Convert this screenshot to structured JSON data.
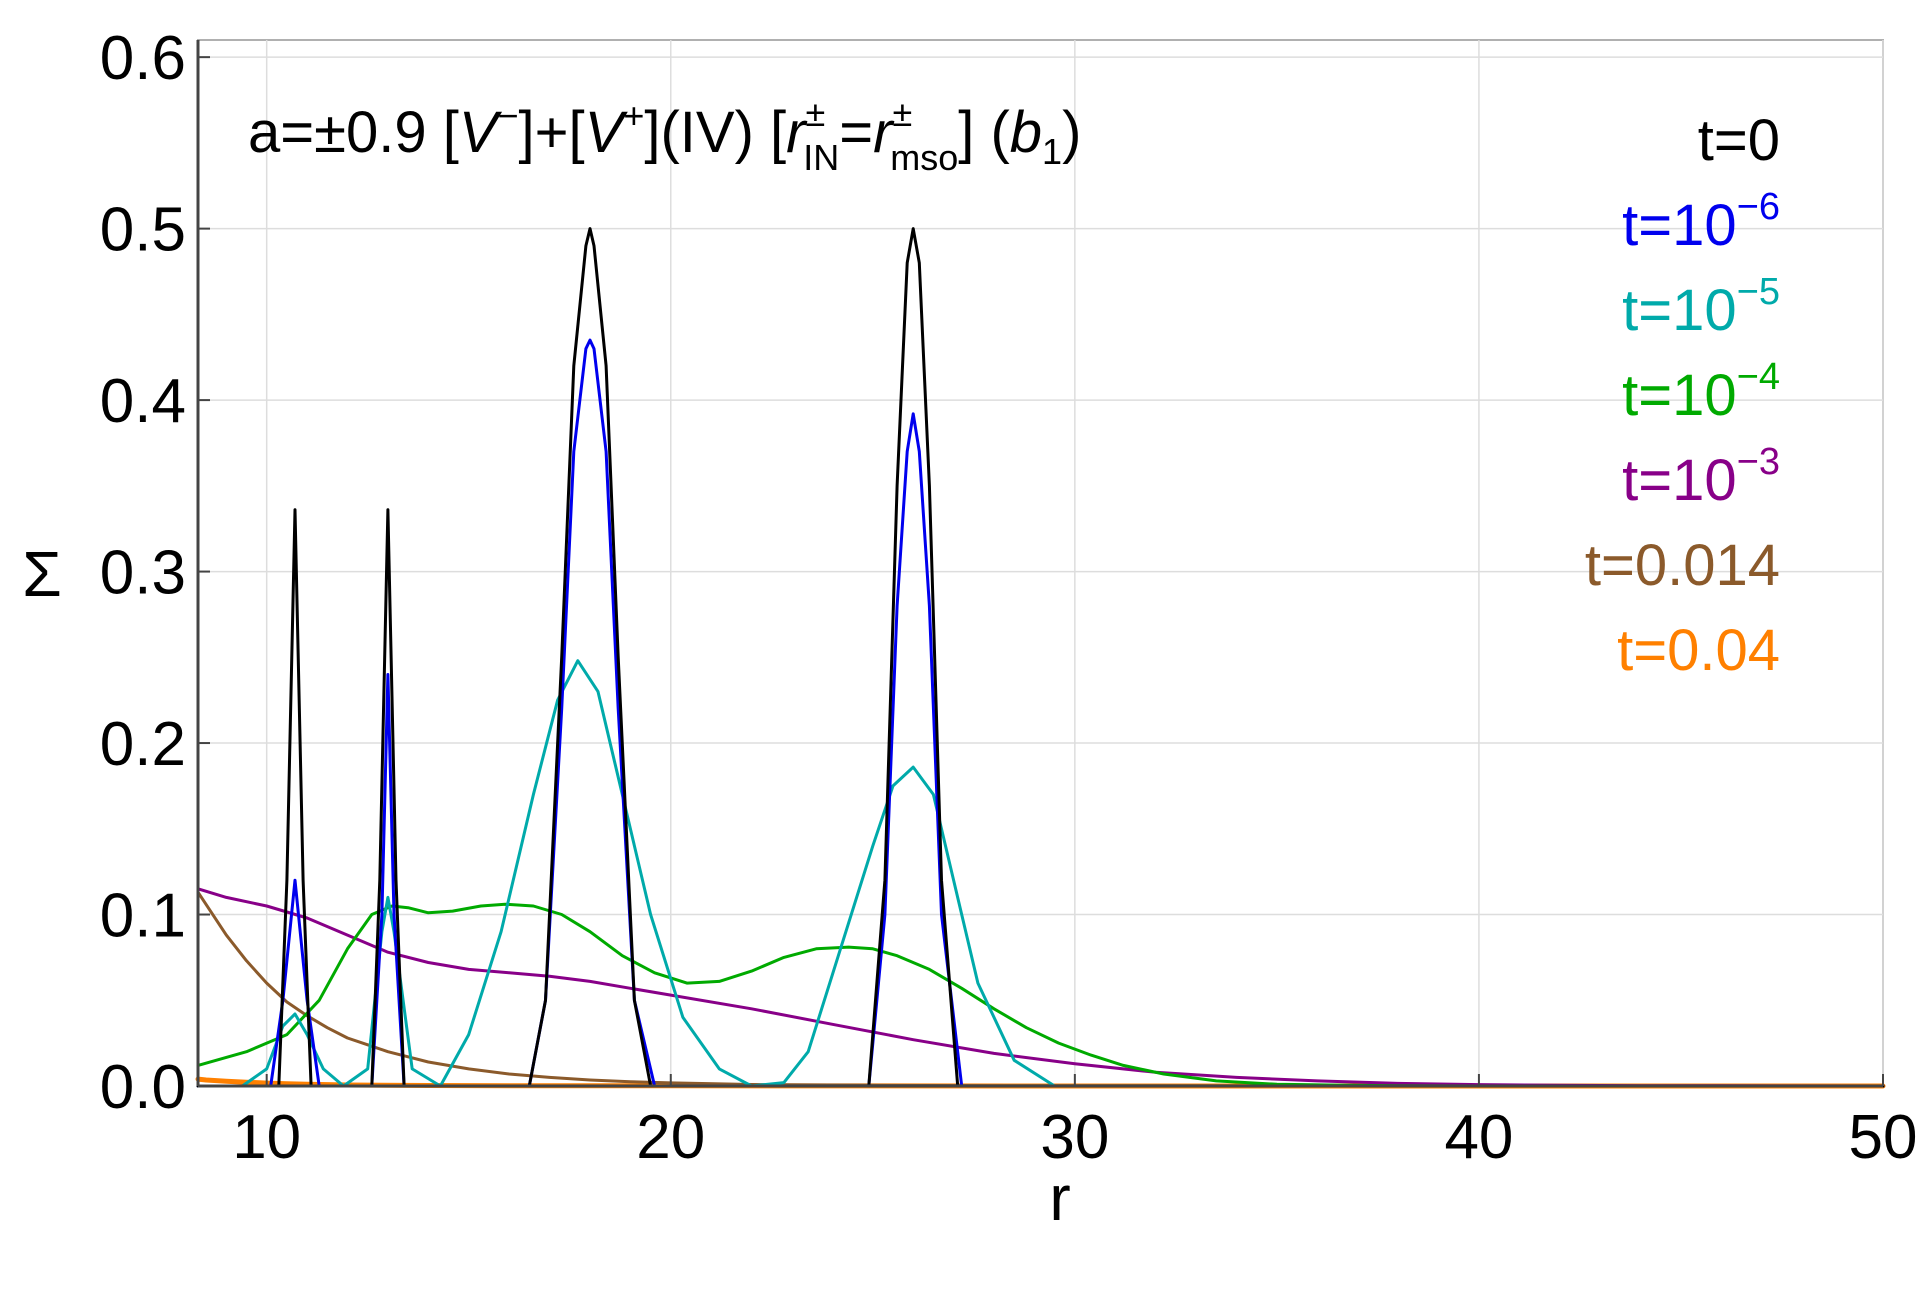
{
  "chart_data": {
    "type": "line",
    "title": {
      "prefix": "a=±0.9 [",
      "v_minus": "V",
      "minus_sup": "−",
      "mid1": "]+[",
      "v_plus": "V",
      "plus_sup": "+",
      "mid2": "](IV) [",
      "r_sym": "r",
      "pm_sup": "±",
      "in_sub": "IN",
      "eq": "=",
      "r_sym2": "r",
      "pm_sup2": "±",
      "mso_sub": "mso",
      "mid3": "] (",
      "b_sym": "b",
      "b_sub": "1",
      "end": ")"
    },
    "xlabel": "r",
    "ylabel": "Σ",
    "xlim": [
      8.3,
      50
    ],
    "ylim": [
      0,
      0.61
    ],
    "xticks": [
      "10",
      "20",
      "30",
      "40",
      "50"
    ],
    "xtick_values": [
      10,
      20,
      30,
      40,
      50
    ],
    "yticks": [
      "0.0",
      "0.1",
      "0.2",
      "0.3",
      "0.4",
      "0.5",
      "0.6"
    ],
    "ytick_values": [
      0,
      0.1,
      0.2,
      0.3,
      0.4,
      0.5,
      0.6
    ],
    "legend_position": "top-right",
    "series": [
      {
        "name": "t=0",
        "label_base": "t=0",
        "label_sup": "",
        "color": "#000000",
        "x": [
          8.3,
          10.3,
          10.5,
          10.7,
          10.9,
          11.1,
          12.6,
          12.8,
          13.0,
          13.2,
          13.4,
          16.5,
          16.9,
          17.3,
          17.6,
          17.9,
          18.0,
          18.1,
          18.4,
          18.7,
          19.1,
          19.5,
          24.9,
          25.3,
          25.6,
          25.85,
          26.0,
          26.15,
          26.4,
          26.7,
          27.1,
          50
        ],
        "y": [
          0,
          0,
          0.12,
          0.336,
          0.12,
          0,
          0,
          0.12,
          0.336,
          0.12,
          0,
          0,
          0.05,
          0.25,
          0.42,
          0.49,
          0.5,
          0.49,
          0.42,
          0.25,
          0.05,
          0,
          0,
          0.12,
          0.35,
          0.48,
          0.5,
          0.48,
          0.35,
          0.12,
          0,
          0
        ]
      },
      {
        "name": "t=10^-6",
        "label_base": "t=10",
        "label_sup": "−6",
        "color": "#0000ee",
        "x": [
          8.3,
          10.1,
          10.4,
          10.7,
          11.0,
          11.3,
          12.6,
          12.85,
          13.0,
          13.15,
          13.4,
          16.5,
          16.9,
          17.3,
          17.6,
          17.9,
          18.0,
          18.1,
          18.4,
          18.7,
          19.1,
          19.6,
          24.9,
          25.3,
          25.6,
          25.85,
          26.0,
          26.15,
          26.4,
          26.7,
          27.2,
          50
        ],
        "y": [
          0,
          0,
          0.05,
          0.12,
          0.05,
          0,
          0,
          0.1,
          0.24,
          0.1,
          0,
          0,
          0.05,
          0.22,
          0.37,
          0.43,
          0.435,
          0.43,
          0.37,
          0.22,
          0.05,
          0,
          0,
          0.1,
          0.28,
          0.37,
          0.392,
          0.37,
          0.28,
          0.1,
          0,
          0
        ]
      },
      {
        "name": "t=10^-5",
        "label_base": "t=10",
        "label_sup": "−5",
        "color": "#00aaaa",
        "x": [
          8.3,
          9.4,
          10.0,
          10.4,
          10.7,
          11.0,
          11.4,
          11.9,
          12.5,
          12.85,
          13.0,
          13.15,
          13.6,
          14.3,
          15.0,
          15.8,
          16.6,
          17.2,
          17.7,
          18.2,
          18.8,
          19.5,
          20.3,
          21.2,
          22.0,
          22.8,
          23.4,
          24.2,
          25.0,
          25.5,
          26.0,
          26.5,
          27.0,
          27.6,
          28.5,
          29.5,
          50
        ],
        "y": [
          0,
          0,
          0.01,
          0.035,
          0.042,
          0.03,
          0.01,
          0,
          0.01,
          0.09,
          0.11,
          0.09,
          0.01,
          0,
          0.03,
          0.09,
          0.17,
          0.225,
          0.248,
          0.23,
          0.17,
          0.1,
          0.04,
          0.01,
          0,
          0.002,
          0.02,
          0.08,
          0.14,
          0.175,
          0.186,
          0.17,
          0.12,
          0.06,
          0.015,
          0,
          0
        ]
      },
      {
        "name": "t=10^-4",
        "label_base": "t=10",
        "label_sup": "−4",
        "color": "#00aa00",
        "x": [
          8.3,
          9.5,
          10.5,
          11.3,
          12.0,
          12.6,
          13.1,
          13.5,
          14.0,
          14.6,
          15.3,
          15.9,
          16.6,
          17.3,
          18.0,
          18.8,
          19.6,
          20.4,
          21.2,
          22.0,
          22.8,
          23.6,
          24.4,
          25.0,
          25.6,
          26.4,
          27.2,
          28.0,
          28.8,
          29.6,
          30.4,
          31.2,
          32.2,
          33.5,
          35.0,
          36.5,
          38.0,
          40.0,
          50
        ],
        "y": [
          0.012,
          0.02,
          0.03,
          0.05,
          0.08,
          0.1,
          0.105,
          0.104,
          0.101,
          0.102,
          0.105,
          0.106,
          0.105,
          0.1,
          0.09,
          0.076,
          0.066,
          0.06,
          0.061,
          0.067,
          0.075,
          0.08,
          0.081,
          0.08,
          0.076,
          0.068,
          0.057,
          0.045,
          0.034,
          0.025,
          0.018,
          0.012,
          0.007,
          0.003,
          0.001,
          0.0005,
          0.0002,
          0,
          0
        ]
      },
      {
        "name": "t=10^-3",
        "label_base": "t=10",
        "label_sup": "−3",
        "color": "#880088",
        "x": [
          8.3,
          9.0,
          10.0,
          11.0,
          12.0,
          13.0,
          14.0,
          15.0,
          16.0,
          17.0,
          18.0,
          19.0,
          20.0,
          22.0,
          24.0,
          26.0,
          28.0,
          30.0,
          32.0,
          34.0,
          36.0,
          38.0,
          40.0,
          42.0,
          44.0,
          46.0,
          50
        ],
        "y": [
          0.115,
          0.11,
          0.105,
          0.098,
          0.088,
          0.078,
          0.072,
          0.068,
          0.066,
          0.064,
          0.061,
          0.057,
          0.053,
          0.045,
          0.036,
          0.027,
          0.019,
          0.013,
          0.008,
          0.005,
          0.003,
          0.0015,
          0.0008,
          0.0004,
          0.0002,
          0.0001,
          0
        ]
      },
      {
        "name": "t=0.014",
        "label_base": "t=0.014",
        "label_sup": "",
        "color": "#8b5a2b",
        "x": [
          8.3,
          8.3,
          9.0,
          9.5,
          10.0,
          10.5,
          11.0,
          11.5,
          12.0,
          12.5,
          13.0,
          13.5,
          14.0,
          15.0,
          16.0,
          17.0,
          18.0,
          19.0,
          20.0,
          22.0,
          25.0,
          28.0,
          32.0,
          50
        ],
        "y": [
          0.012,
          0.113,
          0.088,
          0.073,
          0.06,
          0.049,
          0.041,
          0.034,
          0.028,
          0.024,
          0.02,
          0.017,
          0.014,
          0.01,
          0.007,
          0.005,
          0.0035,
          0.0025,
          0.0018,
          0.0009,
          0.0004,
          0.0002,
          0.0001,
          0
        ]
      },
      {
        "name": "t=0.04",
        "label_base": "t=0.04",
        "label_sup": "",
        "color": "#ff8000",
        "x": [
          8.3,
          8.5,
          9.0,
          9.5,
          10.0,
          10.5,
          11.0,
          12.0,
          14.0,
          16.0,
          20.0,
          30.0,
          50
        ],
        "y": [
          0.004,
          0.0035,
          0.0028,
          0.0022,
          0.0017,
          0.0013,
          0.001,
          0.0006,
          0.0003,
          0.0002,
          0.0001,
          0,
          0
        ]
      }
    ]
  }
}
